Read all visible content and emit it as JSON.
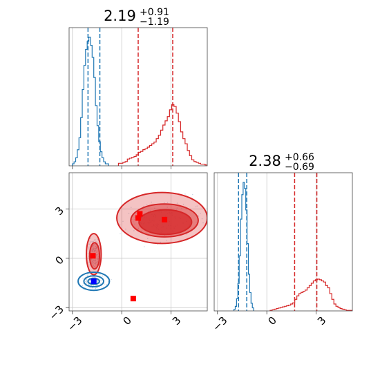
{
  "chart_data": {
    "type": "corner",
    "titles": [
      {
        "value": "2.19",
        "upper": "+0.91",
        "lower": "−1.19"
      },
      {
        "value": "2.38",
        "upper": "+0.66",
        "lower": "−0.69"
      }
    ],
    "tick_labels": [
      "−3",
      "0",
      "3"
    ],
    "axis_range": [
      -3.2,
      5.2
    ],
    "colors": {
      "red": "#d62728",
      "blue": "#1f77b4",
      "marker_red": "#ff0000",
      "marker_blue": "#0000ff",
      "grid": "#c8c8c8",
      "frame": "#444444"
    },
    "series": [
      {
        "name": "",
        "color": "#d62728",
        "hist_x": {
          "edges": [
            -0.2,
            5.2
          ],
          "counts": [
            3,
            3,
            4,
            5,
            8,
            9,
            10,
            11,
            13,
            16,
            17,
            19,
            20,
            22,
            24,
            26,
            28,
            32,
            36,
            42,
            48,
            53,
            58,
            66,
            72,
            70,
            62,
            52,
            40,
            32,
            26,
            18,
            12,
            7,
            5,
            4,
            3,
            2,
            2,
            1
          ],
          "quantile_lines": [
            1.0,
            3.1
          ]
        },
        "hist_y": {
          "edges": [
            0.2,
            5.2
          ],
          "counts": [
            1,
            2,
            3,
            4,
            5,
            6,
            7,
            8,
            9,
            10,
            12,
            14,
            20,
            26,
            30,
            32,
            34,
            36,
            40,
            44,
            48,
            52,
            54,
            55,
            54,
            52,
            50,
            44,
            40,
            30,
            20,
            12,
            8,
            6,
            4,
            3,
            2,
            1,
            1,
            1
          ],
          "quantile_lines": [
            1.69,
            3.04
          ]
        },
        "contours": [
          {
            "level": 1,
            "cx": 2.45,
            "cy": 2.45,
            "rx": 2.75,
            "ry": 1.55
          },
          {
            "level": 2,
            "cx": 2.6,
            "cy": 2.3,
            "rx": 2.05,
            "ry": 1.0
          },
          {
            "level": 3,
            "cx": 2.65,
            "cy": 2.2,
            "rx": 1.6,
            "ry": 0.75
          },
          {
            "level": 1,
            "cx": -1.7,
            "cy": 0.25,
            "rx": 0.45,
            "ry": 1.25
          },
          {
            "level": 2,
            "cx": -1.65,
            "cy": 0.15,
            "rx": 0.3,
            "ry": 0.8
          }
        ],
        "markers": [
          [
            1.1,
            2.7
          ],
          [
            1.0,
            2.45
          ],
          [
            2.6,
            2.35
          ],
          [
            -1.75,
            0.15
          ],
          [
            0.7,
            -2.45
          ]
        ]
      },
      {
        "name": "",
        "color": "#1f77b4",
        "hist_x": {
          "edges": [
            -3.0,
            -0.8
          ],
          "counts": [
            1,
            2,
            4,
            8,
            14,
            24,
            38,
            50,
            58,
            62,
            64,
            60,
            54,
            44,
            30,
            20,
            12,
            7,
            4,
            2,
            1,
            1
          ],
          "quantile_lines": [
            -2.05,
            -1.33
          ]
        },
        "hist_y": {
          "edges": [
            -2.0,
            -0.8
          ],
          "counts": [
            1,
            3,
            8,
            18,
            36,
            60,
            76,
            84,
            80,
            66,
            44,
            24,
            12,
            5,
            2
          ],
          "quantile_lines": [
            -1.72,
            -1.22
          ]
        },
        "contours": [
          {
            "level": 1,
            "cx": -1.7,
            "cy": -1.4,
            "rx": 0.95,
            "ry": 0.55
          },
          {
            "level": 2,
            "cx": -1.7,
            "cy": -1.4,
            "rx": 0.6,
            "ry": 0.33
          },
          {
            "level": 3,
            "cx": -1.7,
            "cy": -1.4,
            "rx": 0.35,
            "ry": 0.18
          }
        ],
        "markers": [
          [
            -1.7,
            -1.4
          ]
        ]
      }
    ]
  }
}
